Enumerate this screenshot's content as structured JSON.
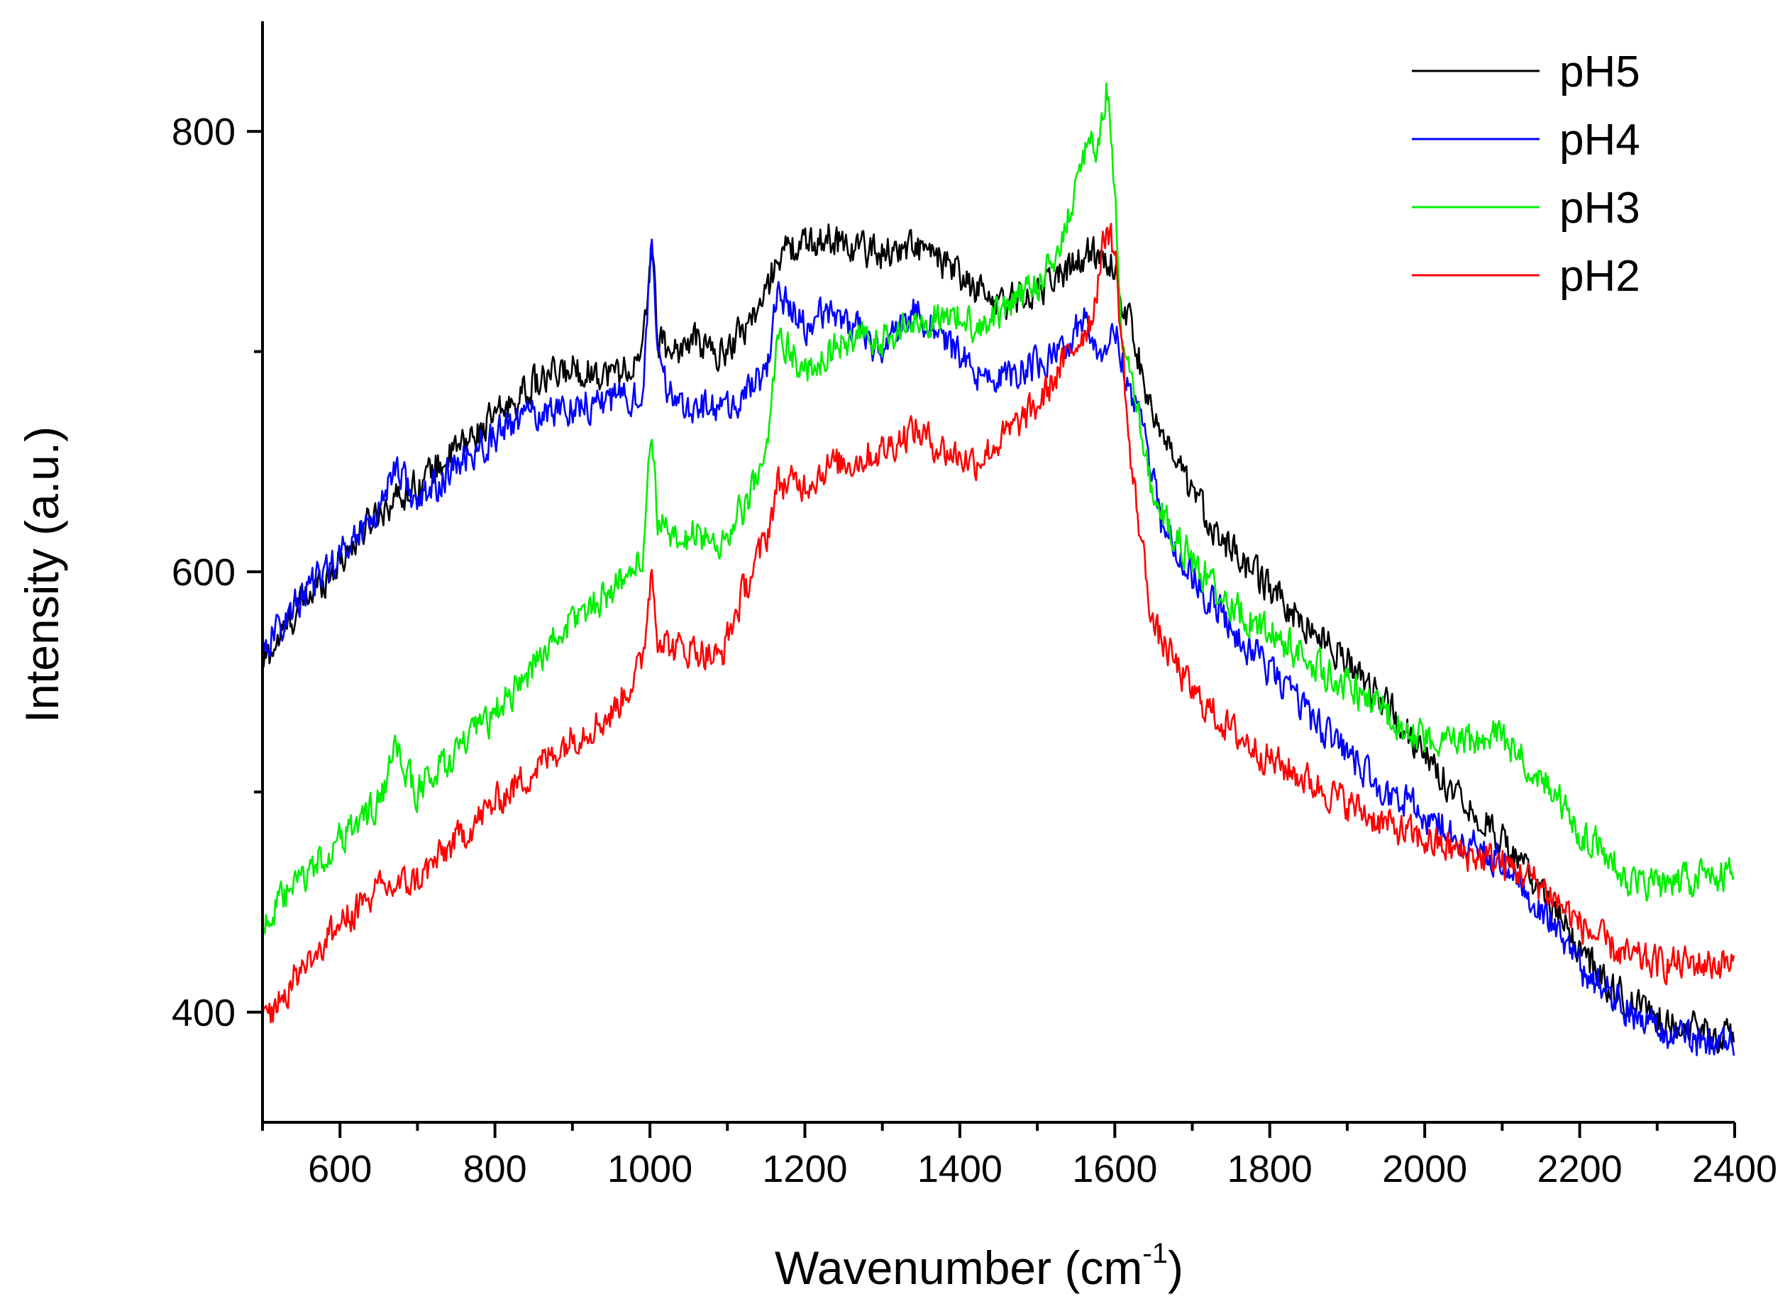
{
  "chart_data": {
    "type": "line",
    "title": "",
    "xlabel": "Wavenumber (cm",
    "xlabel_sup": "-1",
    "xlabel_end": ")",
    "ylabel": "Intensity (a.u.)",
    "xlim": [
      500,
      2400
    ],
    "ylim": [
      350,
      850
    ],
    "xticks": [
      600,
      800,
      1000,
      1200,
      1400,
      1600,
      1800,
      2000,
      2200,
      2400
    ],
    "xticks_minor": [
      500,
      700,
      900,
      1100,
      1300,
      1500,
      1700,
      1900,
      2100,
      2300
    ],
    "yticks": [
      400,
      600,
      800
    ],
    "yticks_minor": [
      500,
      700
    ],
    "legend_position": "top-right",
    "grid": false,
    "series": [
      {
        "name": "pH5",
        "color": "#000000",
        "x": [
          500,
          550,
          600,
          650,
          700,
          750,
          800,
          850,
          900,
          950,
          990,
          1002,
          1010,
          1030,
          1060,
          1090,
          1120,
          1150,
          1165,
          1200,
          1230,
          1260,
          1300,
          1340,
          1380,
          1420,
          1460,
          1500,
          1540,
          1570,
          1590,
          1600,
          1620,
          1640,
          1660,
          1700,
          1750,
          1800,
          1850,
          1900,
          1950,
          2000,
          2050,
          2100,
          2150,
          2200,
          2250,
          2300,
          2350,
          2400
        ],
        "y": [
          558,
          585,
          605,
          628,
          640,
          655,
          670,
          685,
          692,
          690,
          695,
          752,
          705,
          700,
          705,
          698,
          710,
          725,
          745,
          748,
          752,
          748,
          745,
          748,
          740,
          728,
          722,
          728,
          738,
          745,
          742,
          738,
          712,
          685,
          660,
          635,
          610,
          592,
          575,
          560,
          540,
          515,
          498,
          478,
          455,
          428,
          408,
          398,
          392,
          388
        ]
      },
      {
        "name": "pH4",
        "color": "#0000ff",
        "x": [
          500,
          550,
          600,
          650,
          672,
          700,
          750,
          800,
          850,
          900,
          950,
          990,
          1002,
          1010,
          1030,
          1060,
          1090,
          1120,
          1150,
          1165,
          1200,
          1230,
          1260,
          1300,
          1340,
          1380,
          1420,
          1460,
          1500,
          1540,
          1560,
          1580,
          1600,
          1620,
          1640,
          1660,
          1700,
          1750,
          1800,
          1850,
          1900,
          1950,
          2000,
          2050,
          2100,
          2150,
          2200,
          2250,
          2300,
          2350,
          2400
        ],
        "y": [
          565,
          588,
          608,
          628,
          650,
          630,
          648,
          662,
          672,
          675,
          678,
          680,
          748,
          695,
          678,
          676,
          672,
          680,
          690,
          728,
          710,
          720,
          712,
          700,
          720,
          705,
          690,
          688,
          695,
          700,
          718,
          700,
          710,
          680,
          665,
          622,
          598,
          575,
          555,
          535,
          518,
          500,
          490,
          478,
          468,
          448,
          420,
          405,
          392,
          386,
          385
        ]
      },
      {
        "name": "pH3",
        "color": "#00ee00",
        "x": [
          500,
          550,
          600,
          650,
          672,
          700,
          750,
          800,
          850,
          900,
          950,
          990,
          1002,
          1010,
          1030,
          1060,
          1090,
          1120,
          1150,
          1165,
          1200,
          1230,
          1260,
          1300,
          1340,
          1380,
          1420,
          1460,
          1500,
          1530,
          1560,
          1580,
          1590,
          1600,
          1610,
          1630,
          1650,
          1700,
          1750,
          1800,
          1850,
          1900,
          1950,
          2000,
          2050,
          2100,
          2150,
          2200,
          2230,
          2260,
          2300,
          2350,
          2400
        ],
        "y": [
          440,
          460,
          478,
          495,
          518,
          500,
          518,
          535,
          558,
          578,
          592,
          605,
          665,
          625,
          612,
          618,
          612,
          628,
          650,
          710,
          690,
          700,
          705,
          705,
          712,
          718,
          712,
          720,
          730,
          748,
          790,
          795,
          820,
          770,
          700,
          672,
          632,
          605,
          585,
          572,
          560,
          548,
          535,
          525,
          522,
          525,
          508,
          482,
          475,
          460,
          458,
          460,
          462
        ]
      },
      {
        "name": "pH2",
        "color": "#ff0000",
        "x": [
          500,
          550,
          600,
          650,
          700,
          750,
          800,
          850,
          900,
          950,
          990,
          1002,
          1010,
          1030,
          1060,
          1090,
          1120,
          1150,
          1165,
          1200,
          1230,
          1260,
          1300,
          1340,
          1380,
          1420,
          1460,
          1500,
          1540,
          1570,
          1590,
          1600,
          1610,
          1620,
          1640,
          1650,
          1700,
          1750,
          1800,
          1850,
          1900,
          1950,
          2000,
          2050,
          2100,
          2150,
          2200,
          2230,
          2260,
          2300,
          2350,
          2400
        ],
        "y": [
          395,
          420,
          440,
          455,
          460,
          478,
          495,
          510,
          525,
          535,
          558,
          602,
          572,
          565,
          565,
          560,
          590,
          615,
          640,
          640,
          648,
          650,
          655,
          665,
          655,
          650,
          662,
          675,
          698,
          715,
          758,
          745,
          700,
          650,
          600,
          575,
          545,
          528,
          515,
          505,
          495,
          485,
          478,
          472,
          468,
          458,
          440,
          432,
          425,
          422,
          422,
          422
        ]
      }
    ]
  }
}
